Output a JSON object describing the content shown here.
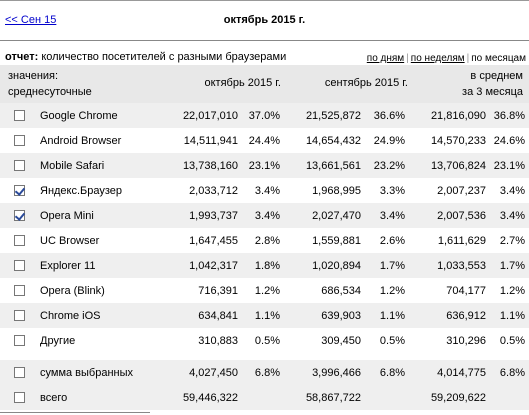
{
  "nav": {
    "prev_link": "<< Сен 15",
    "title": "октябрь 2015 г."
  },
  "report": {
    "label": "отчет:",
    "text": "количество посетителей с разными браузерами"
  },
  "periods": [
    "по дням",
    "по неделям",
    "по месяцам"
  ],
  "header": {
    "values_label": "значения:",
    "values_mode": "среднесуточные",
    "col1": "октябрь 2015 г.",
    "col2": "сентябрь 2015 г.",
    "col3_line1": "в среднем",
    "col3_line2": "за 3 месяца"
  },
  "rows": [
    {
      "name": "Google Chrome",
      "checked": false,
      "v1": "22,017,010",
      "p1": "37.0%",
      "v2": "21,525,872",
      "p2": "36.6%",
      "v3": "21,816,090",
      "p3": "36.8%"
    },
    {
      "name": "Android Browser",
      "checked": false,
      "v1": "14,511,941",
      "p1": "24.4%",
      "v2": "14,654,432",
      "p2": "24.9%",
      "v3": "14,570,233",
      "p3": "24.6%"
    },
    {
      "name": "Mobile Safari",
      "checked": false,
      "v1": "13,738,160",
      "p1": "23.1%",
      "v2": "13,661,561",
      "p2": "23.2%",
      "v3": "13,706,824",
      "p3": "23.1%"
    },
    {
      "name": "Яндекс.Браузер",
      "checked": true,
      "v1": "2,033,712",
      "p1": "3.4%",
      "v2": "1,968,995",
      "p2": "3.3%",
      "v3": "2,007,237",
      "p3": "3.4%"
    },
    {
      "name": "Opera Mini",
      "checked": true,
      "v1": "1,993,737",
      "p1": "3.4%",
      "v2": "2,027,470",
      "p2": "3.4%",
      "v3": "2,007,536",
      "p3": "3.4%"
    },
    {
      "name": "UC Browser",
      "checked": false,
      "v1": "1,647,455",
      "p1": "2.8%",
      "v2": "1,559,881",
      "p2": "2.6%",
      "v3": "1,611,629",
      "p3": "2.7%"
    },
    {
      "name": "Explorer 11",
      "checked": false,
      "v1": "1,042,317",
      "p1": "1.8%",
      "v2": "1,020,894",
      "p2": "1.7%",
      "v3": "1,033,553",
      "p3": "1.7%"
    },
    {
      "name": "Opera (Blink)",
      "checked": false,
      "v1": "716,391",
      "p1": "1.2%",
      "v2": "686,534",
      "p2": "1.2%",
      "v3": "704,177",
      "p3": "1.2%"
    },
    {
      "name": "Chrome iOS",
      "checked": false,
      "v1": "634,841",
      "p1": "1.1%",
      "v2": "639,903",
      "p2": "1.1%",
      "v3": "636,912",
      "p3": "1.1%"
    },
    {
      "name": "Другие",
      "checked": false,
      "v1": "310,883",
      "p1": "0.5%",
      "v2": "309,450",
      "p2": "0.5%",
      "v3": "310,296",
      "p3": "0.5%"
    }
  ],
  "summary": [
    {
      "name": "сумма выбранных",
      "checkbox": true,
      "checked": false,
      "v1": "4,027,450",
      "p1": "6.8%",
      "v2": "3,996,466",
      "p2": "6.8%",
      "v3": "4,014,775",
      "p3": "6.8%"
    },
    {
      "name": "всего",
      "checkbox": true,
      "checked": false,
      "v1": "59,446,322",
      "p1": "",
      "v2": "58,867,722",
      "p2": "",
      "v3": "59,209,622",
      "p3": ""
    }
  ]
}
